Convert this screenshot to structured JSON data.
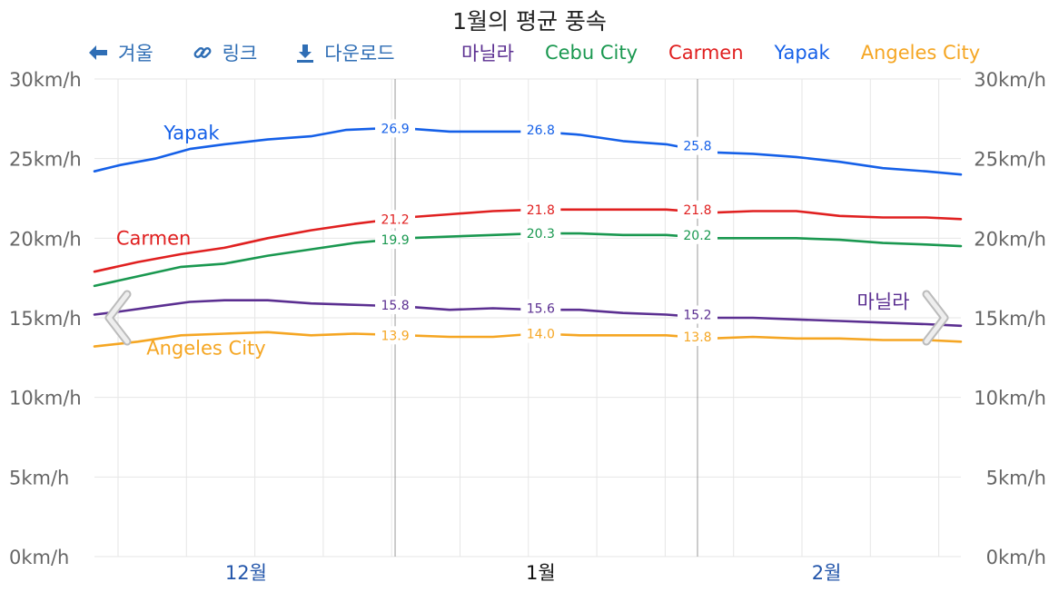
{
  "title": "1월의 평균 풍속",
  "toolbar": {
    "back_label": "겨울",
    "link_label": "링크",
    "download_label": "다운로드"
  },
  "chart_data": {
    "type": "line",
    "title": "1월의 평균 풍속",
    "y_unit": "km/h",
    "ylim": [
      0,
      30
    ],
    "y_ticks": [
      0,
      5,
      10,
      15,
      20,
      25,
      30
    ],
    "y_tick_labels": [
      "0km/h",
      "5km/h",
      "10km/h",
      "15km/h",
      "20km/h",
      "25km/h",
      "30km/h"
    ],
    "x_range": [
      0,
      100
    ],
    "month_labels": [
      {
        "label": "12월",
        "x": 17.5,
        "highlight": false
      },
      {
        "label": "1월",
        "x": 51.5,
        "highlight": true
      },
      {
        "label": "2월",
        "x": 84.5,
        "highlight": false
      }
    ],
    "month_boundaries": [
      34.7,
      69.6
    ],
    "grid": true,
    "legend_position": "top",
    "series": [
      {
        "name": "마닐라",
        "color": "#5b2f91",
        "inline_label": "마닐라",
        "inline_label_x": 88.0,
        "inline_label_y": 15.6,
        "values": [
          [
            0,
            15.2
          ],
          [
            3,
            15.4
          ],
          [
            7,
            15.7
          ],
          [
            11,
            16.0
          ],
          [
            15,
            16.1
          ],
          [
            20,
            16.1
          ],
          [
            25,
            15.9
          ],
          [
            31,
            15.8
          ],
          [
            36,
            15.7
          ],
          [
            41,
            15.5
          ],
          [
            46,
            15.6
          ],
          [
            51,
            15.5
          ],
          [
            56,
            15.5
          ],
          [
            61,
            15.3
          ],
          [
            66,
            15.2
          ],
          [
            71,
            15.0
          ],
          [
            76,
            15.0
          ],
          [
            81,
            14.9
          ],
          [
            86,
            14.8
          ],
          [
            91,
            14.7
          ],
          [
            96,
            14.6
          ],
          [
            100,
            14.5
          ]
        ],
        "data_labels": [
          {
            "x": 34.7,
            "y": 15.8,
            "text": "15.8"
          },
          {
            "x": 51.5,
            "y": 15.6,
            "text": "15.6"
          },
          {
            "x": 69.6,
            "y": 15.2,
            "text": "15.2"
          }
        ]
      },
      {
        "name": "Cebu City",
        "color": "#1a9850",
        "values": [
          [
            0,
            17.0
          ],
          [
            5,
            17.6
          ],
          [
            10,
            18.2
          ],
          [
            15,
            18.4
          ],
          [
            20,
            18.9
          ],
          [
            25,
            19.3
          ],
          [
            30,
            19.7
          ],
          [
            36,
            20.0
          ],
          [
            41,
            20.1
          ],
          [
            46,
            20.2
          ],
          [
            51,
            20.3
          ],
          [
            56,
            20.3
          ],
          [
            61,
            20.2
          ],
          [
            66,
            20.2
          ],
          [
            71,
            20.0
          ],
          [
            76,
            20.0
          ],
          [
            81,
            20.0
          ],
          [
            86,
            19.9
          ],
          [
            91,
            19.7
          ],
          [
            96,
            19.6
          ],
          [
            100,
            19.5
          ]
        ],
        "data_labels": [
          {
            "x": 34.7,
            "y": 19.9,
            "text": "19.9"
          },
          {
            "x": 51.5,
            "y": 20.3,
            "text": "20.3"
          },
          {
            "x": 69.6,
            "y": 20.2,
            "text": "20.2"
          }
        ]
      },
      {
        "name": "Carmen",
        "color": "#e02020",
        "inline_label": "Carmen",
        "inline_label_x": 2.5,
        "inline_label_y": 19.6,
        "values": [
          [
            0,
            17.9
          ],
          [
            5,
            18.5
          ],
          [
            10,
            19.0
          ],
          [
            15,
            19.4
          ],
          [
            20,
            20.0
          ],
          [
            25,
            20.5
          ],
          [
            30,
            20.9
          ],
          [
            36,
            21.3
          ],
          [
            41,
            21.5
          ],
          [
            46,
            21.7
          ],
          [
            51,
            21.8
          ],
          [
            56,
            21.8
          ],
          [
            61,
            21.8
          ],
          [
            66,
            21.8
          ],
          [
            71,
            21.6
          ],
          [
            76,
            21.7
          ],
          [
            81,
            21.7
          ],
          [
            86,
            21.4
          ],
          [
            91,
            21.3
          ],
          [
            96,
            21.3
          ],
          [
            100,
            21.2
          ]
        ],
        "data_labels": [
          {
            "x": 34.7,
            "y": 21.2,
            "text": "21.2"
          },
          {
            "x": 51.5,
            "y": 21.8,
            "text": "21.8"
          },
          {
            "x": 69.6,
            "y": 21.8,
            "text": "21.8"
          }
        ]
      },
      {
        "name": "Yapak",
        "color": "#1560e8",
        "inline_label": "Yapak",
        "inline_label_x": 8.0,
        "inline_label_y": 26.2,
        "values": [
          [
            0,
            24.2
          ],
          [
            3,
            24.6
          ],
          [
            7,
            25.0
          ],
          [
            11,
            25.6
          ],
          [
            15,
            25.9
          ],
          [
            20,
            26.2
          ],
          [
            25,
            26.4
          ],
          [
            29,
            26.8
          ],
          [
            33,
            26.9
          ],
          [
            36,
            26.9
          ],
          [
            41,
            26.7
          ],
          [
            46,
            26.7
          ],
          [
            51,
            26.7
          ],
          [
            56,
            26.5
          ],
          [
            61,
            26.1
          ],
          [
            66,
            25.9
          ],
          [
            71,
            25.4
          ],
          [
            76,
            25.3
          ],
          [
            81,
            25.1
          ],
          [
            86,
            24.8
          ],
          [
            91,
            24.4
          ],
          [
            96,
            24.2
          ],
          [
            100,
            24.0
          ]
        ],
        "data_labels": [
          {
            "x": 34.7,
            "y": 26.9,
            "text": "26.9"
          },
          {
            "x": 51.5,
            "y": 26.8,
            "text": "26.8"
          },
          {
            "x": 69.6,
            "y": 25.8,
            "text": "25.8"
          }
        ]
      },
      {
        "name": "Angeles City",
        "color": "#f5a623",
        "inline_label": "Angeles City",
        "inline_label_x": 6.0,
        "inline_label_y": 12.7,
        "values": [
          [
            0,
            13.2
          ],
          [
            5,
            13.5
          ],
          [
            10,
            13.9
          ],
          [
            15,
            14.0
          ],
          [
            20,
            14.1
          ],
          [
            25,
            13.9
          ],
          [
            30,
            14.0
          ],
          [
            36,
            13.9
          ],
          [
            41,
            13.8
          ],
          [
            46,
            13.8
          ],
          [
            51,
            14.0
          ],
          [
            56,
            13.9
          ],
          [
            61,
            13.9
          ],
          [
            66,
            13.9
          ],
          [
            71,
            13.7
          ],
          [
            76,
            13.8
          ],
          [
            81,
            13.7
          ],
          [
            86,
            13.7
          ],
          [
            91,
            13.6
          ],
          [
            96,
            13.6
          ],
          [
            100,
            13.5
          ]
        ],
        "data_labels": [
          {
            "x": 34.7,
            "y": 13.9,
            "text": "13.9"
          },
          {
            "x": 51.5,
            "y": 14.0,
            "text": "14.0"
          },
          {
            "x": 69.6,
            "y": 13.8,
            "text": "13.8"
          }
        ]
      }
    ]
  }
}
